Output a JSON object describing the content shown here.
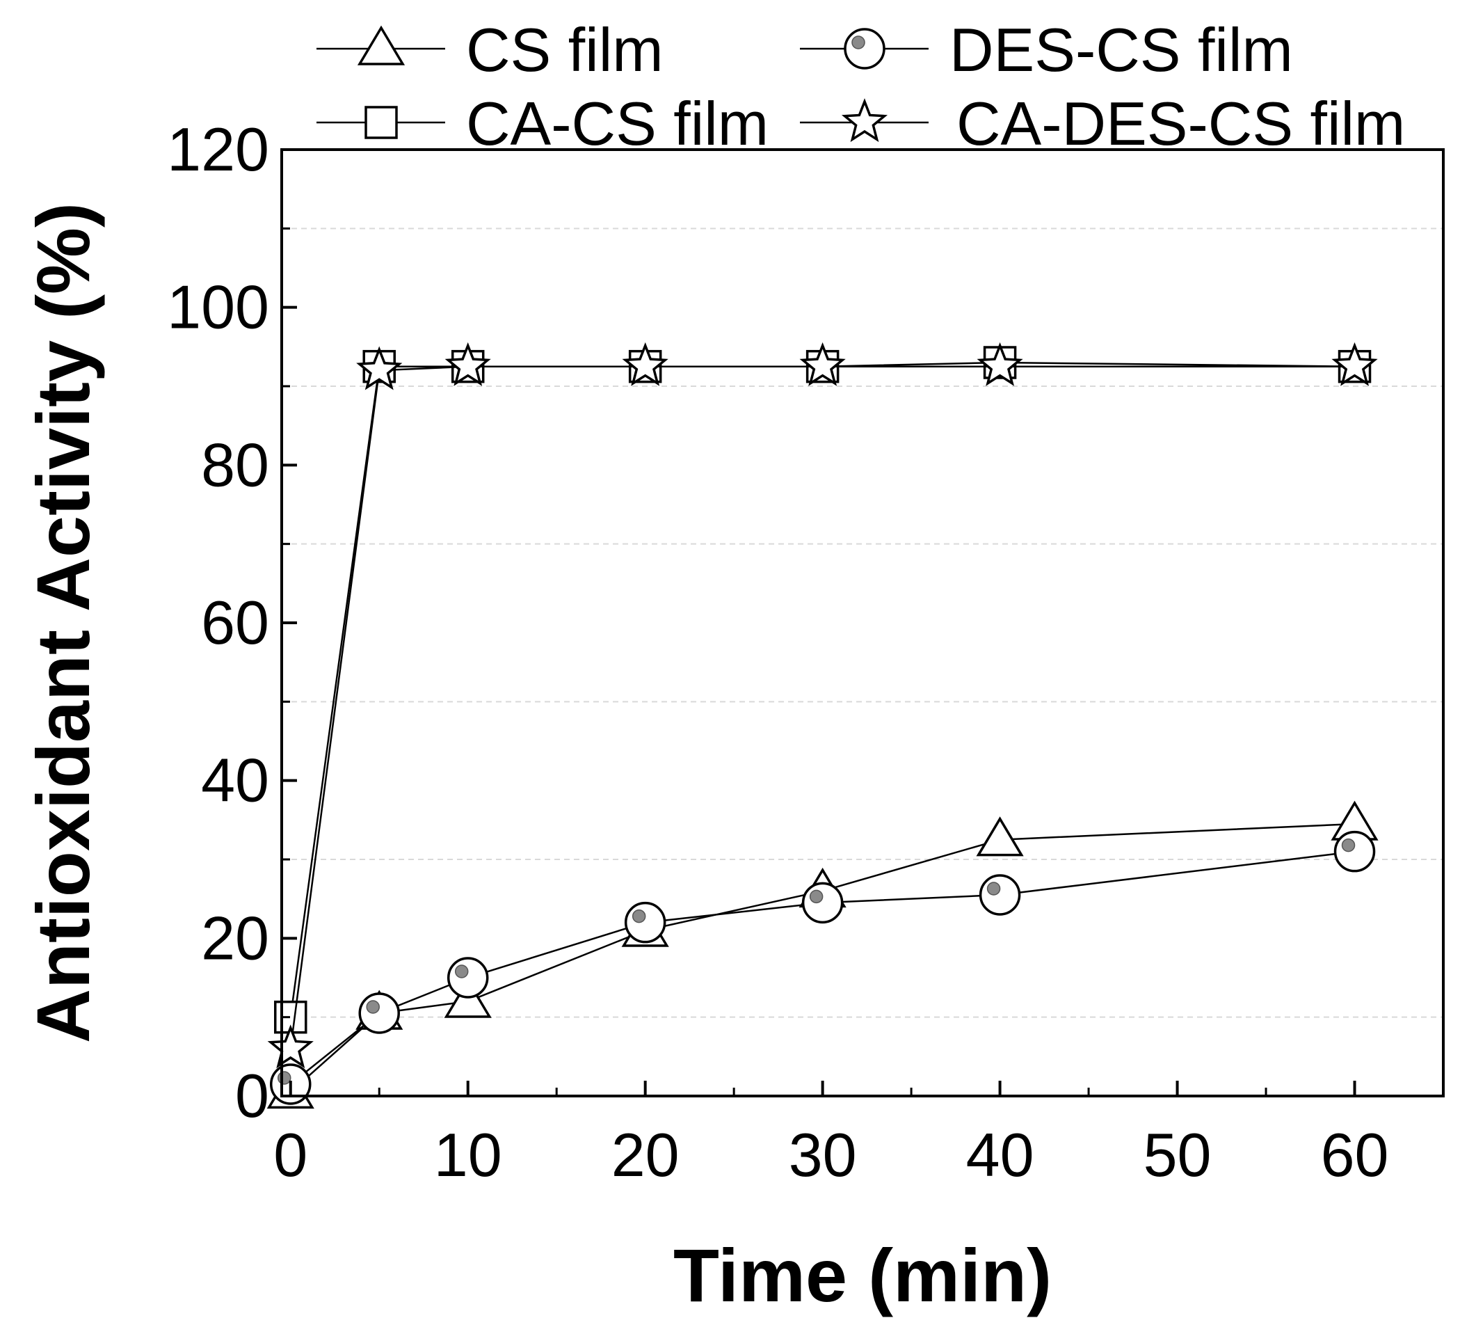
{
  "chart_data": {
    "type": "line",
    "title": "",
    "xlabel": "Time (min)",
    "ylabel": "Antioxidant Activity (%)",
    "xlim": [
      -0.5,
      65
    ],
    "ylim": [
      0,
      120
    ],
    "xticks": [
      0,
      10,
      20,
      30,
      40,
      50,
      60
    ],
    "yticks": [
      0,
      20,
      40,
      60,
      80,
      100,
      120
    ],
    "grid": "horizontal dashed",
    "legend_position": "top, outside plot, two columns",
    "series": [
      {
        "name": "CS film",
        "marker": "triangle",
        "x": [
          0,
          5,
          10,
          20,
          30,
          40,
          60
        ],
        "y": [
          0.5,
          10.5,
          12,
          21,
          26,
          32.5,
          34.5
        ]
      },
      {
        "name": "DES-CS film",
        "marker": "circle",
        "x": [
          0,
          5,
          10,
          20,
          30,
          40,
          60
        ],
        "y": [
          1.5,
          10.5,
          15,
          22,
          24.5,
          25.5,
          31
        ]
      },
      {
        "name": "CA-CS film",
        "marker": "square",
        "x": [
          0,
          5,
          10,
          20,
          30,
          40,
          60
        ],
        "y": [
          10,
          92.5,
          92.5,
          92.5,
          92.5,
          93,
          92.5
        ]
      },
      {
        "name": "CA-DES-CS film",
        "marker": "star",
        "x": [
          0,
          5,
          10,
          20,
          30,
          40,
          60
        ],
        "y": [
          6,
          92,
          92.5,
          92.5,
          92.5,
          92.5,
          92.5
        ]
      }
    ]
  }
}
